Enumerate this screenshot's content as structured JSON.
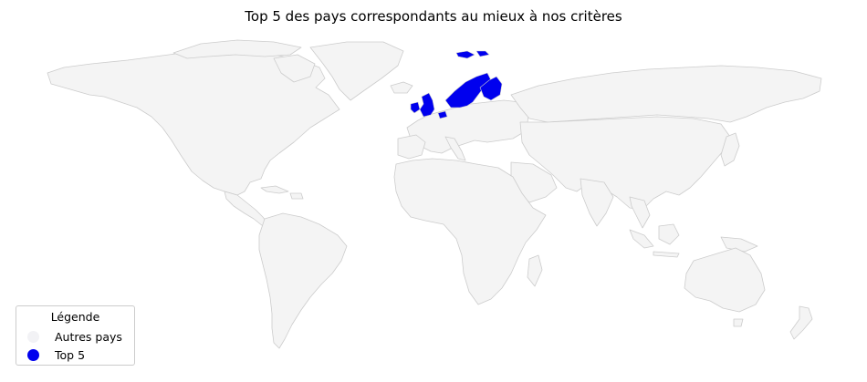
{
  "title": "Top 5 des pays correspondants au mieux à nos critères",
  "legend": {
    "title": "Légende",
    "items": [
      {
        "label": "Autres pays",
        "color": "#f2f2f5"
      },
      {
        "label": "Top 5",
        "color": "#0000ee"
      }
    ]
  },
  "colors": {
    "land": "#f4f4f4",
    "border": "#cccccc",
    "highlight": "#0000ee"
  },
  "highlighted_region": "Northern Europe"
}
